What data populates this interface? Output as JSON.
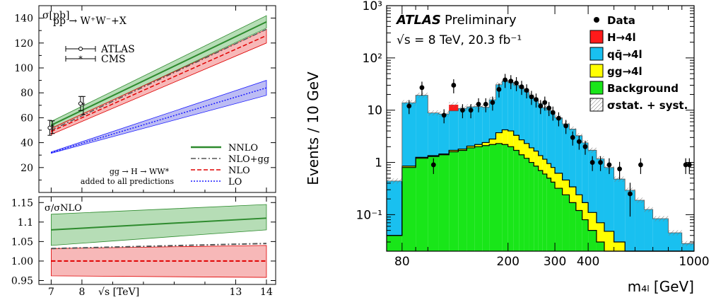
{
  "chart_data": [
    {
      "type": "line",
      "upper": {
        "ylabel": "σ[pb]",
        "process_label": "pp → W⁺W⁻+X",
        "note_line1": "gg → H → WW*",
        "note_line2": "added to all predictions",
        "ylim": [
          0,
          150
        ],
        "y_ticks": [
          20,
          40,
          60,
          80,
          100,
          120,
          140
        ],
        "bands": [
          {
            "name": "NNLO",
            "color": "#2e8b2e",
            "fill": "#9ed29e",
            "x": [
              7,
              14
            ],
            "center": [
              54,
              137
            ],
            "lo": [
              51,
              132
            ],
            "hi": [
              57,
              142
            ],
            "style": "solid"
          },
          {
            "name": "NLO+gg",
            "color": "#555555",
            "fill": null,
            "x": [
              7,
              14
            ],
            "center": [
              50,
              131
            ],
            "lo": null,
            "hi": null,
            "style": "dashdot"
          },
          {
            "name": "NLO",
            "color": "#e00000",
            "fill": "#f4a0a0",
            "x": [
              7,
              14
            ],
            "center": [
              49,
              126
            ],
            "lo": [
              46.5,
              120
            ],
            "hi": [
              51.5,
              131
            ],
            "style": "dashed"
          },
          {
            "name": "LO",
            "color": "#1a1aff",
            "fill": "#a6a6f0",
            "x": [
              7,
              14
            ],
            "center": [
              32,
              84
            ],
            "lo": [
              31.5,
              78
            ],
            "hi": [
              32.5,
              90
            ],
            "style": "dotted"
          }
        ],
        "measurements": [
          {
            "name": "ATLAS",
            "marker": "circle",
            "points": [
              {
                "x": 7,
                "y": 51.9,
                "err": 6.0
              },
              {
                "x": 8,
                "y": 71.4,
                "err": 5.7
              }
            ]
          },
          {
            "name": "CMS",
            "marker": "star",
            "points": [
              {
                "x": 7,
                "y": 52.4,
                "err": 5.1
              },
              {
                "x": 8,
                "y": 69.9,
                "err": 7.2
              }
            ]
          }
        ]
      },
      "lower": {
        "ylabel": "σ/σNLO",
        "ylim": [
          0.94,
          1.165
        ],
        "y_ticks": [
          "0.95",
          "1.00",
          "1.05",
          "1.1",
          "1.15"
        ],
        "bands": [
          {
            "name": "NNLO",
            "x": [
              7,
              14
            ],
            "center": [
              1.08,
              1.11
            ],
            "lo": [
              1.04,
              1.08
            ],
            "hi": [
              1.12,
              1.145
            ]
          },
          {
            "name": "NLO+gg",
            "x": [
              7,
              14
            ],
            "center": [
              1.032,
              1.045
            ],
            "lo": null,
            "hi": null
          },
          {
            "name": "NLO",
            "x": [
              7,
              14
            ],
            "center": [
              1.0,
              1.0
            ],
            "lo": [
              0.962,
              0.958
            ],
            "hi": [
              1.032,
              1.04
            ]
          }
        ]
      },
      "xlabel": "√s [TeV]",
      "xlim": [
        6.6,
        14.3
      ],
      "x_ticks": [
        "7",
        "8",
        "13",
        "14"
      ],
      "x_tick_values": [
        7,
        8,
        13,
        14
      ]
    },
    {
      "type": "bar",
      "stacked": true,
      "log_y": true,
      "title": "ATLAS",
      "title_suffix": "Preliminary",
      "subtitle": "√s = 8 TeV, 20.3 fb⁻¹",
      "ylabel": "Events / 10 GeV",
      "xlabel": "m₄ₗ [GeV]",
      "log_x": true,
      "xlim": [
        70,
        1000
      ],
      "ylim": [
        0.02,
        1000
      ],
      "x_ticks": [
        "80",
        "200",
        "300",
        "400",
        "1000"
      ],
      "x_tick_values": [
        80,
        200,
        300,
        400,
        1000
      ],
      "y_ticks": [
        "10⁻¹",
        "1",
        "10",
        "10²",
        "10³"
      ],
      "y_tick_values": [
        0.1,
        1,
        10,
        100,
        1000
      ],
      "legend": [
        {
          "label": "Data",
          "kind": "marker",
          "color": "#000000"
        },
        {
          "label": "H→4l",
          "kind": "box",
          "color": "#ff1a1a"
        },
        {
          "label": "qq̄→4l",
          "kind": "box",
          "color": "#19c0f0"
        },
        {
          "label": "gg→4l",
          "kind": "box",
          "color": "#ffff00"
        },
        {
          "label": "Background",
          "kind": "box",
          "color": "#19e619"
        },
        {
          "label": "σstat. + syst.",
          "kind": "hatch",
          "color": "#888888"
        }
      ],
      "bins": [
        {
          "lo": 70,
          "hi": 80,
          "bkg": 0.04,
          "gg": 0.0,
          "qq": 0.4,
          "h": 0
        },
        {
          "lo": 80,
          "hi": 90,
          "bkg": 0.8,
          "gg": 0.05,
          "qq": 13,
          "h": 0
        },
        {
          "lo": 90,
          "hi": 100,
          "bkg": 1.2,
          "gg": 0.05,
          "qq": 18,
          "h": 0
        },
        {
          "lo": 100,
          "hi": 110,
          "bkg": 1.3,
          "gg": 0.05,
          "qq": 7.5,
          "h": 0
        },
        {
          "lo": 110,
          "hi": 120,
          "bkg": 1.4,
          "gg": 0.05,
          "qq": 7,
          "h": 0
        },
        {
          "lo": 120,
          "hi": 130,
          "bkg": 1.6,
          "gg": 0.1,
          "qq": 8,
          "h": 3
        },
        {
          "lo": 130,
          "hi": 140,
          "bkg": 1.7,
          "gg": 0.1,
          "qq": 9,
          "h": 0
        },
        {
          "lo": 140,
          "hi": 150,
          "bkg": 1.9,
          "gg": 0.15,
          "qq": 9.5,
          "h": 0
        },
        {
          "lo": 150,
          "hi": 160,
          "bkg": 2.0,
          "gg": 0.2,
          "qq": 9.5,
          "h": 0
        },
        {
          "lo": 160,
          "hi": 170,
          "bkg": 2.1,
          "gg": 0.3,
          "qq": 9,
          "h": 0
        },
        {
          "lo": 170,
          "hi": 180,
          "bkg": 2.2,
          "gg": 0.6,
          "qq": 13,
          "h": 0
        },
        {
          "lo": 180,
          "hi": 190,
          "bkg": 2.3,
          "gg": 1.4,
          "qq": 27,
          "h": 0
        },
        {
          "lo": 190,
          "hi": 200,
          "bkg": 2.2,
          "gg": 2.0,
          "qq": 32,
          "h": 0
        },
        {
          "lo": 200,
          "hi": 210,
          "bkg": 2.0,
          "gg": 2.0,
          "qq": 30,
          "h": 0
        },
        {
          "lo": 210,
          "hi": 220,
          "bkg": 1.7,
          "gg": 1.6,
          "qq": 27,
          "h": 0
        },
        {
          "lo": 220,
          "hi": 230,
          "bkg": 1.4,
          "gg": 1.3,
          "qq": 24,
          "h": 0
        },
        {
          "lo": 230,
          "hi": 240,
          "bkg": 1.2,
          "gg": 1.1,
          "qq": 20,
          "h": 0
        },
        {
          "lo": 240,
          "hi": 250,
          "bkg": 1.0,
          "gg": 0.9,
          "qq": 17,
          "h": 0
        },
        {
          "lo": 250,
          "hi": 260,
          "bkg": 0.85,
          "gg": 0.8,
          "qq": 14,
          "h": 0
        },
        {
          "lo": 260,
          "hi": 270,
          "bkg": 0.7,
          "gg": 0.65,
          "qq": 12,
          "h": 0
        },
        {
          "lo": 270,
          "hi": 280,
          "bkg": 0.6,
          "gg": 0.55,
          "qq": 10,
          "h": 0
        },
        {
          "lo": 280,
          "hi": 290,
          "bkg": 0.5,
          "gg": 0.45,
          "qq": 9,
          "h": 0
        },
        {
          "lo": 290,
          "hi": 300,
          "bkg": 0.42,
          "gg": 0.38,
          "qq": 8,
          "h": 0
        },
        {
          "lo": 300,
          "hi": 320,
          "bkg": 0.32,
          "gg": 0.3,
          "qq": 6.5,
          "h": 0
        },
        {
          "lo": 320,
          "hi": 340,
          "bkg": 0.24,
          "gg": 0.22,
          "qq": 5,
          "h": 0
        },
        {
          "lo": 340,
          "hi": 360,
          "bkg": 0.17,
          "gg": 0.17,
          "qq": 4,
          "h": 0
        },
        {
          "lo": 360,
          "hi": 380,
          "bkg": 0.12,
          "gg": 0.12,
          "qq": 3,
          "h": 0
        },
        {
          "lo": 380,
          "hi": 400,
          "bkg": 0.08,
          "gg": 0.09,
          "qq": 2.2,
          "h": 0
        },
        {
          "lo": 400,
          "hi": 430,
          "bkg": 0.05,
          "gg": 0.06,
          "qq": 1.6,
          "h": 0
        },
        {
          "lo": 430,
          "hi": 460,
          "bkg": 0.03,
          "gg": 0.04,
          "qq": 1.1,
          "h": 0
        },
        {
          "lo": 460,
          "hi": 500,
          "bkg": 0.018,
          "gg": 0.03,
          "qq": 0.75,
          "h": 0
        },
        {
          "lo": 500,
          "hi": 550,
          "bkg": 0.01,
          "gg": 0.02,
          "qq": 0.45,
          "h": 0
        },
        {
          "lo": 550,
          "hi": 600,
          "bkg": 0.0,
          "gg": 0.013,
          "qq": 0.28,
          "h": 0
        },
        {
          "lo": 600,
          "hi": 650,
          "bkg": 0.0,
          "gg": 0.009,
          "qq": 0.18,
          "h": 0
        },
        {
          "lo": 650,
          "hi": 700,
          "bkg": 0.0,
          "gg": 0.006,
          "qq": 0.12,
          "h": 0
        },
        {
          "lo": 700,
          "hi": 800,
          "bkg": 0.0,
          "gg": 0.004,
          "qq": 0.08,
          "h": 0
        },
        {
          "lo": 800,
          "hi": 900,
          "bkg": 0.0,
          "gg": 0.0,
          "qq": 0.045,
          "h": 0
        },
        {
          "lo": 900,
          "hi": 1000,
          "bkg": 0.0,
          "gg": 0.0,
          "qq": 0.028,
          "h": 0
        }
      ],
      "data_points": [
        {
          "x": 85,
          "y": 12
        },
        {
          "x": 95,
          "y": 27
        },
        {
          "x": 105,
          "y": 0.9
        },
        {
          "x": 115,
          "y": 8
        },
        {
          "x": 125,
          "y": 30
        },
        {
          "x": 135,
          "y": 10
        },
        {
          "x": 145,
          "y": 10
        },
        {
          "x": 155,
          "y": 13
        },
        {
          "x": 165,
          "y": 13
        },
        {
          "x": 175,
          "y": 14
        },
        {
          "x": 185,
          "y": 25
        },
        {
          "x": 195,
          "y": 38
        },
        {
          "x": 205,
          "y": 36
        },
        {
          "x": 215,
          "y": 33
        },
        {
          "x": 225,
          "y": 28
        },
        {
          "x": 235,
          "y": 24
        },
        {
          "x": 245,
          "y": 18
        },
        {
          "x": 255,
          "y": 16
        },
        {
          "x": 265,
          "y": 12
        },
        {
          "x": 275,
          "y": 14
        },
        {
          "x": 285,
          "y": 11
        },
        {
          "x": 295,
          "y": 9
        },
        {
          "x": 310,
          "y": 7
        },
        {
          "x": 330,
          "y": 5
        },
        {
          "x": 350,
          "y": 3
        },
        {
          "x": 370,
          "y": 2.5
        },
        {
          "x": 390,
          "y": 2
        },
        {
          "x": 415,
          "y": 1
        },
        {
          "x": 445,
          "y": 1
        },
        {
          "x": 480,
          "y": 0.9
        },
        {
          "x": 525,
          "y": 0.75
        },
        {
          "x": 575,
          "y": 0.25
        },
        {
          "x": 630,
          "y": 0.9
        },
        {
          "x": 930,
          "y": 0.9
        },
        {
          "x": 960,
          "y": 0.9
        }
      ]
    }
  ]
}
